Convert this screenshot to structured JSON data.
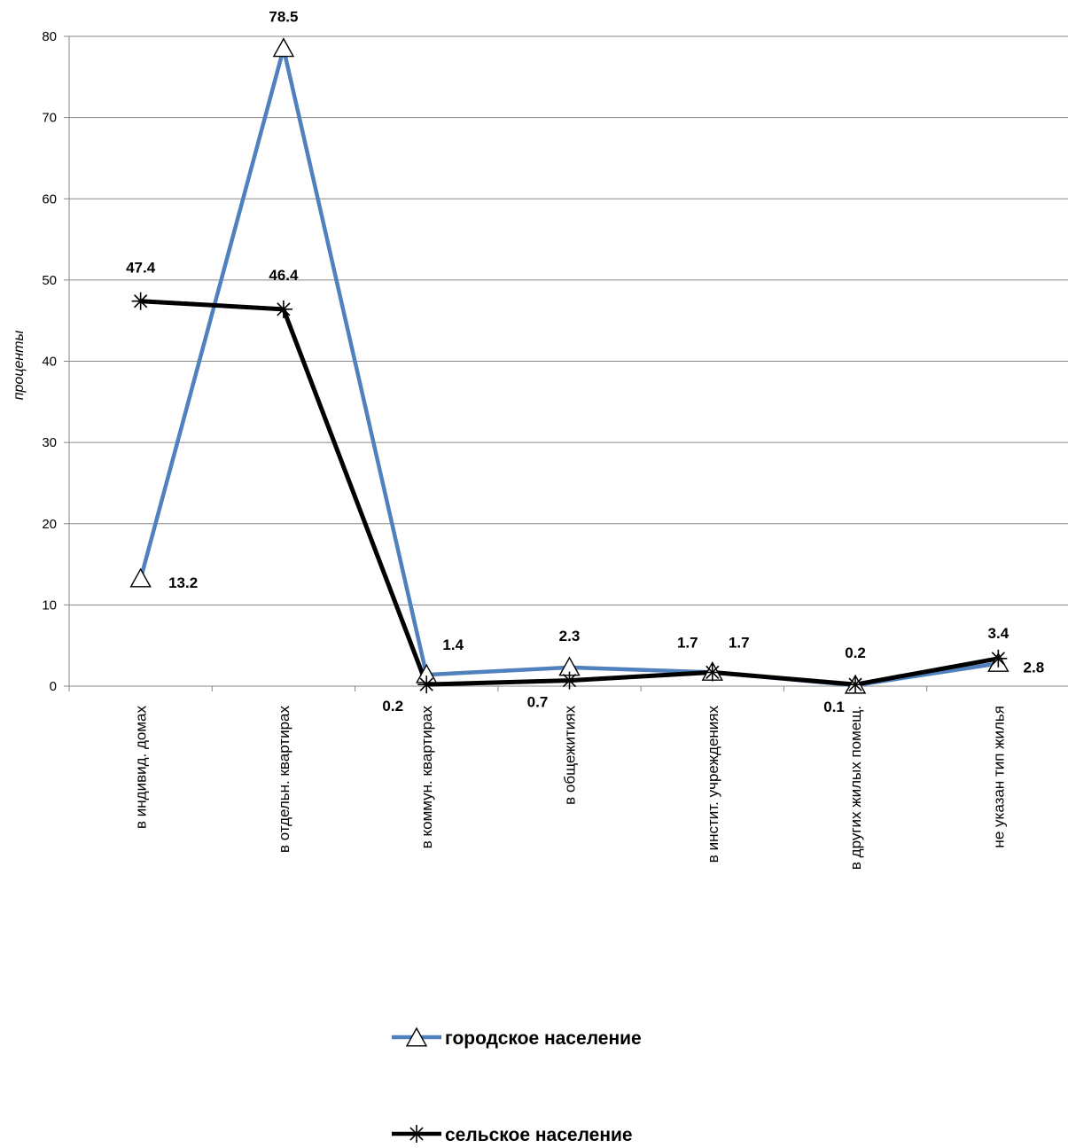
{
  "chart_data": {
    "type": "line",
    "title": "",
    "xlabel": "",
    "ylabel": "проценты",
    "ylim": [
      0,
      80
    ],
    "yticks": [
      0,
      10,
      20,
      30,
      40,
      50,
      60,
      70,
      80
    ],
    "grid": true,
    "legend_placement": "bottom",
    "categories": [
      "в  индивид.  домах",
      "в  отдельн. квартирах",
      "в  коммун. квартирах",
      "в  общежитиях",
      "в  инстит.  учреждениях",
      "в  других  жилых  помещ.",
      "не  указан тип жилья"
    ],
    "series": [
      {
        "name": "городское население",
        "color": "#4f81bd",
        "marker": "triangle",
        "values": [
          13.2,
          78.5,
          1.4,
          2.3,
          1.7,
          0.1,
          2.8
        ],
        "labels": [
          "13.2",
          "78.5",
          "1.4",
          "2.3",
          "1.7",
          "0.1",
          "2.8"
        ]
      },
      {
        "name": "сельское население",
        "color": "#000000",
        "marker": "star",
        "values": [
          47.4,
          46.4,
          0.2,
          0.7,
          1.7,
          0.2,
          3.4
        ],
        "labels": [
          "47.4",
          "46.4",
          "0.2",
          "0.7",
          "1.7",
          "0.2",
          "3.4"
        ]
      }
    ]
  }
}
